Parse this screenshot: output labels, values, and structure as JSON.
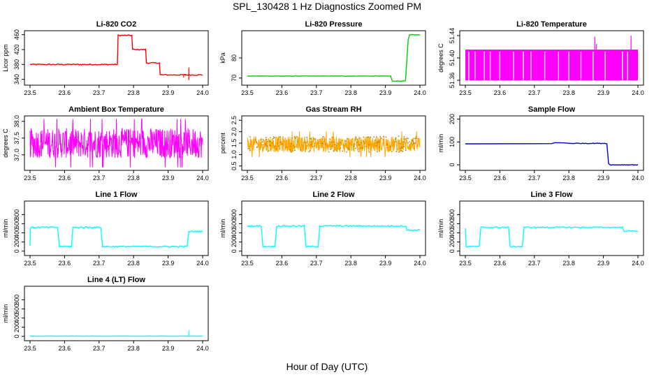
{
  "figure": {
    "title": "SPL_130428 1 Hz Diagnostics Zoomed PM",
    "xlabel": "Hour of Day (UTC)"
  },
  "chart_data": [
    {
      "type": "line",
      "title": "Li-820 CO2",
      "ylabel": "Licor ppm",
      "color": "#ff0000",
      "xlim": [
        23.5,
        24.0
      ],
      "ylim": [
        330,
        465
      ],
      "xticks": [
        "23.5",
        "23.6",
        "23.7",
        "23.8",
        "23.9",
        "24.0"
      ],
      "yticks": [
        {
          "v": 340,
          "label": "340"
        },
        {
          "v": 380,
          "label": "380"
        },
        {
          "v": 420,
          "label": "420"
        },
        {
          "v": 460,
          "label": "460"
        }
      ],
      "series": [
        {
          "noise": 1.5,
          "points": [
            [
              23.5,
              380
            ],
            [
              23.753,
              380
            ],
            [
              23.755,
              458
            ],
            [
              23.795,
              458
            ],
            [
              23.797,
              420
            ],
            [
              23.835,
              420
            ],
            [
              23.837,
              384
            ],
            [
              23.875,
              384
            ],
            [
              23.877,
              352
            ],
            [
              23.95,
              352
            ],
            [
              23.96,
              352
            ],
            [
              23.963,
              352
            ],
            [
              24.0,
              352
            ]
          ]
        }
      ],
      "spikes": [
        [
          23.96,
          338,
          372
        ],
        [
          23.945,
          345,
          352
        ]
      ]
    },
    {
      "type": "line",
      "title": "Li-820 Pressure",
      "ylabel": "kPa",
      "color": "#00cc00",
      "xlim": [
        23.5,
        24.0
      ],
      "ylim": [
        67.5,
        92.5
      ],
      "xticks": [
        "23.5",
        "23.6",
        "23.7",
        "23.8",
        "23.9",
        "24.0"
      ],
      "yticks": [
        {
          "v": 70,
          "label": "70"
        },
        {
          "v": 80,
          "label": "80"
        }
      ],
      "series": [
        {
          "noise": 0.1,
          "points": [
            [
              23.5,
              71
            ],
            [
              23.915,
              71
            ],
            [
              23.92,
              68.5
            ],
            [
              23.958,
              68.5
            ],
            [
              23.966,
              89
            ],
            [
              23.97,
              91.5
            ],
            [
              24.0,
              91.5
            ]
          ]
        }
      ]
    },
    {
      "type": "line",
      "title": "Li-820 Temperature",
      "ylabel": "degrees C",
      "color": "#ff00ff",
      "xlim": [
        23.5,
        24.0
      ],
      "ylim": [
        51.355,
        51.445
      ],
      "xticks": [
        "23.5",
        "23.6",
        "23.7",
        "23.8",
        "23.9",
        "24.0"
      ],
      "yticks": [
        {
          "v": 51.36,
          "label": "51.36"
        },
        {
          "v": 51.4,
          "label": "51.40"
        },
        {
          "v": 51.44,
          "label": "51.44"
        }
      ],
      "band": {
        "x0": 23.5,
        "x1": 24.0,
        "lo": 51.36,
        "hi": 51.415
      },
      "gaps": [
        23.51,
        23.528,
        23.555,
        23.572,
        23.6,
        23.64,
        23.668,
        23.69,
        23.73,
        23.77,
        23.8,
        23.835,
        23.87,
        23.905,
        23.955,
        23.97
      ],
      "spikes": [
        [
          23.875,
          51.415,
          51.438
        ],
        [
          23.98,
          51.415,
          51.44
        ],
        [
          23.88,
          51.415,
          51.425
        ]
      ]
    },
    {
      "type": "line",
      "title": "Ambient Box Temperature",
      "ylabel": "degrees C",
      "color": "#ff00ff",
      "xlim": [
        23.5,
        24.0
      ],
      "ylim": [
        36.6,
        38.1
      ],
      "xticks": [
        "23.5",
        "23.6",
        "23.7",
        "23.8",
        "23.9",
        "24.0"
      ],
      "yticks": [
        {
          "v": 37.0,
          "label": "37.0"
        },
        {
          "v": 37.5,
          "label": "37.5"
        },
        {
          "v": 38.0,
          "label": "38.0"
        }
      ],
      "dense": {
        "lo": 36.8,
        "hi": 37.9,
        "center": 37.35,
        "amp": 0.45
      }
    },
    {
      "type": "scatter",
      "title": "Gas Stream RH",
      "ylabel": "percent",
      "color": "#ffa500",
      "xlim": [
        23.5,
        24.0
      ],
      "ylim": [
        0.4,
        2.6
      ],
      "xticks": [
        "23.5",
        "23.6",
        "23.7",
        "23.8",
        "23.9",
        "24.0"
      ],
      "yticks": [
        {
          "v": 0.5,
          "label": "0.5"
        },
        {
          "v": 1.0,
          "label": "1.0"
        },
        {
          "v": 1.5,
          "label": "1.5"
        },
        {
          "v": 2.0,
          "label": "2.0"
        },
        {
          "v": 2.5,
          "label": "2.5"
        }
      ],
      "dense": {
        "lo": 1.0,
        "hi": 1.9,
        "center": 1.45,
        "amp": 0.35
      }
    },
    {
      "type": "line",
      "title": "Sample Flow",
      "ylabel": "ml/min",
      "color": "#0000cc",
      "xlim": [
        23.5,
        24.0
      ],
      "ylim": [
        -15,
        205
      ],
      "xticks": [
        "23.5",
        "23.6",
        "23.7",
        "23.8",
        "23.9",
        "24.0"
      ],
      "yticks": [
        {
          "v": 0,
          "label": "0"
        },
        {
          "v": 100,
          "label": "100"
        },
        {
          "v": 200,
          "label": "200"
        }
      ],
      "series": [
        {
          "noise": 1.5,
          "points": [
            [
              23.5,
              92
            ],
            [
              23.75,
              93
            ],
            [
              23.76,
              97
            ],
            [
              23.79,
              96
            ],
            [
              23.8,
              94
            ],
            [
              23.91,
              94
            ],
            [
              23.915,
              5
            ],
            [
              23.92,
              0
            ],
            [
              24.0,
              0
            ]
          ]
        }
      ]
    },
    {
      "type": "line",
      "title": "Line 1 Flow",
      "ylabel": "ml/min",
      "color": "#00ffff",
      "xlim": [
        23.5,
        24.0
      ],
      "ylim": [
        -50,
        1050
      ],
      "xticks": [
        "23.5",
        "23.6",
        "23.7",
        "23.8",
        "23.9",
        "24.0"
      ],
      "yticks": [
        {
          "v": 0,
          "label": "0"
        },
        {
          "v": 200,
          "label": "200"
        },
        {
          "v": 400,
          "label": "400"
        },
        {
          "v": 600,
          "label": "600"
        },
        {
          "v": 800,
          "label": "800"
        }
      ],
      "series": [
        {
          "noise": 15,
          "points": [
            [
              23.5,
              120
            ],
            [
              23.501,
              520
            ],
            [
              23.58,
              520
            ],
            [
              23.585,
              100
            ],
            [
              23.62,
              100
            ],
            [
              23.624,
              520
            ],
            [
              23.705,
              520
            ],
            [
              23.71,
              100
            ],
            [
              23.955,
              100
            ],
            [
              23.96,
              430
            ],
            [
              24.0,
              430
            ]
          ]
        }
      ]
    },
    {
      "type": "line",
      "title": "Line 2 Flow",
      "ylabel": "ml/min",
      "color": "#00ffff",
      "xlim": [
        23.5,
        24.0
      ],
      "ylim": [
        -50,
        1050
      ],
      "xticks": [
        "23.5",
        "23.6",
        "23.7",
        "23.8",
        "23.9",
        "24.0"
      ],
      "yticks": [
        {
          "v": 0,
          "label": "0"
        },
        {
          "v": 200,
          "label": "200"
        },
        {
          "v": 400,
          "label": "400"
        },
        {
          "v": 600,
          "label": "600"
        },
        {
          "v": 800,
          "label": "800"
        }
      ],
      "series": [
        {
          "noise": 15,
          "points": [
            [
              23.5,
              550
            ],
            [
              23.54,
              550
            ],
            [
              23.545,
              100
            ],
            [
              23.58,
              100
            ],
            [
              23.585,
              550
            ],
            [
              23.665,
              550
            ],
            [
              23.67,
              100
            ],
            [
              23.705,
              100
            ],
            [
              23.71,
              550
            ],
            [
              23.96,
              550
            ],
            [
              23.962,
              460
            ],
            [
              24.0,
              460
            ]
          ]
        }
      ]
    },
    {
      "type": "line",
      "title": "Line 3 Flow",
      "ylabel": "ml/min",
      "color": "#00ffff",
      "xlim": [
        23.5,
        24.0
      ],
      "ylim": [
        -50,
        1050
      ],
      "xticks": [
        "23.5",
        "23.6",
        "23.7",
        "23.8",
        "23.9",
        "24.0"
      ],
      "yticks": [
        {
          "v": 0,
          "label": "0"
        },
        {
          "v": 200,
          "label": "200"
        },
        {
          "v": 400,
          "label": "400"
        },
        {
          "v": 600,
          "label": "600"
        },
        {
          "v": 800,
          "label": "800"
        }
      ],
      "series": [
        {
          "noise": 12,
          "points": [
            [
              23.5,
              500
            ],
            [
              23.502,
              100
            ],
            [
              23.54,
              100
            ],
            [
              23.545,
              520
            ],
            [
              23.625,
              520
            ],
            [
              23.63,
              100
            ],
            [
              23.665,
              100
            ],
            [
              23.67,
              520
            ],
            [
              23.955,
              520
            ],
            [
              23.96,
              440
            ],
            [
              24.0,
              440
            ]
          ]
        }
      ]
    },
    {
      "type": "line",
      "title": "Line 4 (LT) Flow",
      "ylabel": "ml/min",
      "color": "#00ffff",
      "xlim": [
        23.5,
        24.0
      ],
      "ylim": [
        -50,
        1050
      ],
      "xticks": [
        "23.5",
        "23.6",
        "23.7",
        "23.8",
        "23.9",
        "24.0"
      ],
      "yticks": [
        {
          "v": 0,
          "label": "0"
        },
        {
          "v": 200,
          "label": "200"
        },
        {
          "v": 400,
          "label": "400"
        },
        {
          "v": 600,
          "label": "600"
        },
        {
          "v": 800,
          "label": "800"
        }
      ],
      "series": [
        {
          "noise": 3,
          "points": [
            [
              23.5,
              5
            ],
            [
              24.0,
              5
            ]
          ]
        }
      ],
      "spikes": [
        [
          23.96,
          5,
          130
        ]
      ]
    }
  ]
}
